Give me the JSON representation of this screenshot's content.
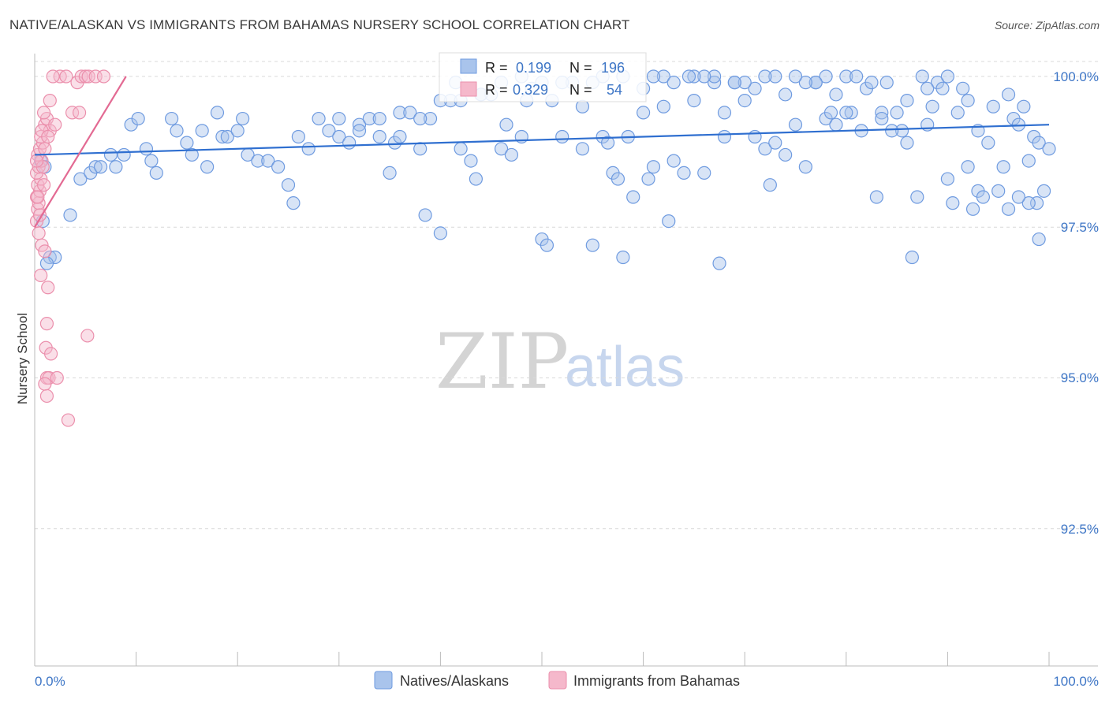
{
  "title": "NATIVE/ALASKAN VS IMMIGRANTS FROM BAHAMAS NURSERY SCHOOL CORRELATION CHART",
  "source": "Source: ZipAtlas.com",
  "watermark": {
    "zip": "ZIP",
    "atlas": "atlas"
  },
  "legend_top": {
    "rows": [
      {
        "r_label": "R =",
        "r_value": "0.199",
        "n_label": "N =",
        "n_value": "196"
      },
      {
        "r_label": "R =",
        "r_value": "0.329",
        "n_label": "N =",
        "n_value": "54"
      }
    ]
  },
  "colors": {
    "blue_fill": "#a9c4ec",
    "blue_stroke": "#6f9be0",
    "blue_line": "#2f6fd0",
    "pink_fill": "#f5b8cb",
    "pink_stroke": "#eb8fac",
    "pink_line": "#e36a93",
    "tick_text": "#3e76c6",
    "grid": "#d9d9d9"
  },
  "chart_data": {
    "type": "scatter",
    "title": "NATIVE/ALASKAN VS IMMIGRANTS FROM BAHAMAS NURSERY SCHOOL CORRELATION CHART",
    "xlabel": "",
    "ylabel": "Nursery School",
    "xlim": [
      0,
      100
    ],
    "ylim": [
      90.0,
      100.2
    ],
    "x_tick_labels": [
      "0.0%",
      "100.0%"
    ],
    "y_ticks": [
      100.0,
      97.5,
      95.0,
      92.5
    ],
    "y_tick_labels": [
      "100.0%",
      "97.5%",
      "95.0%",
      "92.5%"
    ],
    "grid": "horizontal dashed",
    "legend_position": "bottom-center",
    "series": [
      {
        "name": "Natives/Alaskans",
        "R": 0.199,
        "N": 196,
        "trendline": {
          "x": [
            0,
            100
          ],
          "y": [
            98.7,
            99.2
          ]
        },
        "points": [
          [
            0.8,
            97.6
          ],
          [
            1.5,
            97.0
          ],
          [
            2.0,
            97.0
          ],
          [
            1.2,
            96.9
          ],
          [
            3.5,
            97.7
          ],
          [
            0.6,
            98.6
          ],
          [
            1.0,
            98.5
          ],
          [
            4.5,
            98.3
          ],
          [
            5.5,
            98.4
          ],
          [
            6.0,
            98.5
          ],
          [
            6.5,
            98.5
          ],
          [
            7.5,
            98.7
          ],
          [
            8.0,
            98.5
          ],
          [
            8.8,
            98.7
          ],
          [
            9.5,
            99.2
          ],
          [
            10.2,
            99.3
          ],
          [
            11.0,
            98.8
          ],
          [
            11.5,
            98.6
          ],
          [
            12.0,
            98.4
          ],
          [
            13.5,
            99.3
          ],
          [
            14.0,
            99.1
          ],
          [
            15.0,
            98.9
          ],
          [
            15.5,
            98.7
          ],
          [
            16.5,
            99.1
          ],
          [
            17.0,
            98.5
          ],
          [
            18.0,
            99.4
          ],
          [
            18.5,
            99.0
          ],
          [
            19.0,
            99.0
          ],
          [
            20.0,
            99.1
          ],
          [
            20.5,
            99.3
          ],
          [
            21.0,
            98.7
          ],
          [
            22.0,
            98.6
          ],
          [
            23.0,
            98.6
          ],
          [
            24.0,
            98.5
          ],
          [
            25.0,
            98.2
          ],
          [
            25.5,
            97.9
          ],
          [
            26.0,
            99.0
          ],
          [
            27.0,
            98.8
          ],
          [
            28.0,
            99.3
          ],
          [
            29.0,
            99.1
          ],
          [
            30.0,
            99.0
          ],
          [
            31.0,
            98.9
          ],
          [
            32.0,
            99.2
          ],
          [
            33.0,
            99.3
          ],
          [
            34.0,
            99.0
          ],
          [
            35.0,
            98.4
          ],
          [
            35.5,
            98.9
          ],
          [
            36.0,
            99.4
          ],
          [
            37.0,
            99.4
          ],
          [
            38.0,
            98.8
          ],
          [
            38.5,
            97.7
          ],
          [
            39.0,
            99.3
          ],
          [
            40.0,
            97.4
          ],
          [
            41.0,
            99.6
          ],
          [
            41.5,
            99.9
          ],
          [
            42.0,
            98.8
          ],
          [
            43.0,
            98.6
          ],
          [
            43.5,
            98.3
          ],
          [
            44.0,
            99.7
          ],
          [
            45.0,
            99.7
          ],
          [
            46.0,
            98.8
          ],
          [
            46.5,
            99.2
          ],
          [
            47.0,
            98.7
          ],
          [
            48.0,
            99.0
          ],
          [
            48.5,
            99.6
          ],
          [
            49.0,
            99.8
          ],
          [
            50.0,
            97.3
          ],
          [
            50.5,
            97.2
          ],
          [
            51.0,
            99.6
          ],
          [
            52.0,
            99.0
          ],
          [
            53.0,
            99.9
          ],
          [
            54.0,
            98.8
          ],
          [
            55.0,
            97.2
          ],
          [
            56.0,
            99.0
          ],
          [
            56.5,
            98.9
          ],
          [
            57.0,
            98.4
          ],
          [
            57.5,
            98.3
          ],
          [
            58.0,
            97.0
          ],
          [
            58.5,
            99.0
          ],
          [
            59.0,
            98.0
          ],
          [
            60.0,
            99.4
          ],
          [
            60.5,
            98.3
          ],
          [
            61.0,
            98.5
          ],
          [
            62.0,
            100.0
          ],
          [
            62.5,
            97.6
          ],
          [
            63.0,
            98.6
          ],
          [
            64.0,
            98.4
          ],
          [
            65.0,
            99.6
          ],
          [
            66.0,
            98.4
          ],
          [
            67.0,
            99.9
          ],
          [
            67.5,
            96.9
          ],
          [
            68.0,
            99.0
          ],
          [
            69.0,
            99.9
          ],
          [
            70.0,
            99.6
          ],
          [
            71.0,
            99.0
          ],
          [
            72.0,
            98.8
          ],
          [
            72.5,
            98.2
          ],
          [
            73.0,
            98.9
          ],
          [
            74.0,
            98.7
          ],
          [
            75.0,
            99.2
          ],
          [
            76.0,
            98.5
          ],
          [
            77.0,
            99.9
          ],
          [
            78.0,
            99.3
          ],
          [
            78.5,
            99.4
          ],
          [
            79.0,
            99.7
          ],
          [
            80.0,
            100.0
          ],
          [
            80.5,
            99.4
          ],
          [
            81.0,
            100.0
          ],
          [
            82.0,
            99.8
          ],
          [
            83.0,
            98.0
          ],
          [
            83.5,
            99.4
          ],
          [
            84.0,
            99.9
          ],
          [
            85.0,
            99.4
          ],
          [
            86.0,
            98.9
          ],
          [
            86.5,
            97.0
          ],
          [
            87.0,
            98.0
          ],
          [
            88.0,
            99.2
          ],
          [
            88.5,
            99.5
          ],
          [
            89.0,
            99.9
          ],
          [
            90.0,
            98.3
          ],
          [
            90.5,
            97.9
          ],
          [
            91.0,
            99.4
          ],
          [
            92.0,
            98.5
          ],
          [
            92.5,
            97.8
          ],
          [
            93.0,
            98.1
          ],
          [
            93.5,
            98.0
          ],
          [
            94.0,
            98.9
          ],
          [
            95.0,
            98.1
          ],
          [
            96.0,
            99.7
          ],
          [
            96.5,
            99.3
          ],
          [
            97.0,
            99.2
          ],
          [
            97.5,
            99.5
          ],
          [
            98.0,
            98.6
          ],
          [
            98.5,
            99.0
          ],
          [
            99.0,
            98.9
          ],
          [
            99.5,
            98.1
          ],
          [
            100.0,
            98.8
          ],
          [
            99.0,
            97.3
          ],
          [
            98.8,
            97.9
          ],
          [
            98.0,
            97.9
          ],
          [
            97.0,
            98.0
          ],
          [
            96.0,
            97.8
          ],
          [
            95.5,
            98.5
          ],
          [
            94.5,
            99.5
          ],
          [
            93.0,
            99.1
          ],
          [
            92.0,
            99.6
          ],
          [
            91.5,
            99.8
          ],
          [
            90.0,
            100.0
          ],
          [
            89.5,
            99.8
          ],
          [
            88.0,
            99.8
          ],
          [
            87.5,
            100.0
          ],
          [
            86.0,
            99.6
          ],
          [
            85.5,
            99.1
          ],
          [
            84.5,
            99.1
          ],
          [
            83.5,
            99.3
          ],
          [
            82.5,
            99.9
          ],
          [
            81.5,
            99.1
          ],
          [
            80.0,
            99.4
          ],
          [
            79.0,
            99.2
          ],
          [
            78.0,
            100.0
          ],
          [
            77.0,
            99.9
          ],
          [
            76.0,
            99.9
          ],
          [
            75.0,
            100.0
          ],
          [
            74.0,
            99.7
          ],
          [
            73.0,
            100.0
          ],
          [
            72.0,
            100.0
          ],
          [
            71.0,
            99.8
          ],
          [
            70.0,
            99.9
          ],
          [
            69.0,
            99.9
          ],
          [
            68.0,
            99.4
          ],
          [
            67.0,
            100.0
          ],
          [
            66.0,
            100.0
          ],
          [
            65.0,
            100.0
          ],
          [
            64.5,
            100.0
          ],
          [
            63.0,
            99.9
          ],
          [
            62.0,
            99.5
          ],
          [
            61.0,
            100.0
          ],
          [
            60.0,
            99.8
          ],
          [
            58.0,
            100.0
          ],
          [
            56.0,
            100.0
          ],
          [
            55.0,
            99.9
          ],
          [
            54.0,
            99.5
          ],
          [
            52.0,
            99.9
          ],
          [
            50.0,
            99.9
          ],
          [
            48.0,
            100.0
          ],
          [
            46.0,
            99.9
          ],
          [
            44.0,
            99.7
          ],
          [
            42.0,
            99.6
          ],
          [
            40.0,
            99.6
          ],
          [
            38.0,
            99.3
          ],
          [
            36.0,
            99.0
          ],
          [
            34.0,
            99.3
          ],
          [
            32.0,
            99.1
          ],
          [
            30.0,
            99.3
          ]
        ]
      },
      {
        "name": "Immigrants from Bahamas",
        "R": 0.329,
        "N": 54,
        "trendline": {
          "x": [
            0,
            9
          ],
          "y": [
            97.5,
            100.0
          ]
        },
        "points": [
          [
            0.2,
            97.6
          ],
          [
            0.3,
            97.8
          ],
          [
            0.4,
            97.9
          ],
          [
            0.2,
            98.0
          ],
          [
            0.5,
            98.1
          ],
          [
            0.3,
            98.2
          ],
          [
            0.6,
            98.3
          ],
          [
            0.2,
            98.4
          ],
          [
            0.4,
            98.5
          ],
          [
            0.7,
            98.6
          ],
          [
            0.3,
            98.7
          ],
          [
            0.5,
            98.8
          ],
          [
            0.8,
            98.9
          ],
          [
            0.6,
            99.0
          ],
          [
            1.0,
            99.2
          ],
          [
            1.2,
            99.3
          ],
          [
            0.9,
            99.4
          ],
          [
            1.5,
            99.1
          ],
          [
            2.0,
            99.2
          ],
          [
            0.4,
            97.4
          ],
          [
            0.7,
            97.2
          ],
          [
            1.0,
            97.1
          ],
          [
            0.6,
            96.7
          ],
          [
            1.3,
            96.5
          ],
          [
            1.2,
            95.9
          ],
          [
            1.1,
            95.5
          ],
          [
            1.6,
            95.4
          ],
          [
            1.2,
            95.0
          ],
          [
            1.4,
            95.0
          ],
          [
            2.2,
            95.0
          ],
          [
            1.0,
            94.9
          ],
          [
            1.2,
            94.7
          ],
          [
            3.3,
            94.3
          ],
          [
            5.2,
            95.7
          ],
          [
            3.7,
            99.4
          ],
          [
            4.4,
            99.4
          ],
          [
            1.5,
            99.6
          ],
          [
            4.2,
            99.9
          ],
          [
            4.6,
            100.0
          ],
          [
            5.0,
            100.0
          ],
          [
            5.3,
            100.0
          ],
          [
            6.0,
            100.0
          ],
          [
            6.8,
            100.0
          ],
          [
            2.5,
            100.0
          ],
          [
            3.1,
            100.0
          ],
          [
            1.8,
            100.0
          ],
          [
            1.0,
            98.8
          ],
          [
            0.8,
            98.5
          ],
          [
            0.3,
            98.0
          ],
          [
            0.5,
            97.7
          ],
          [
            0.9,
            98.2
          ],
          [
            0.2,
            98.6
          ],
          [
            0.7,
            99.1
          ],
          [
            1.3,
            99.0
          ]
        ]
      }
    ]
  }
}
